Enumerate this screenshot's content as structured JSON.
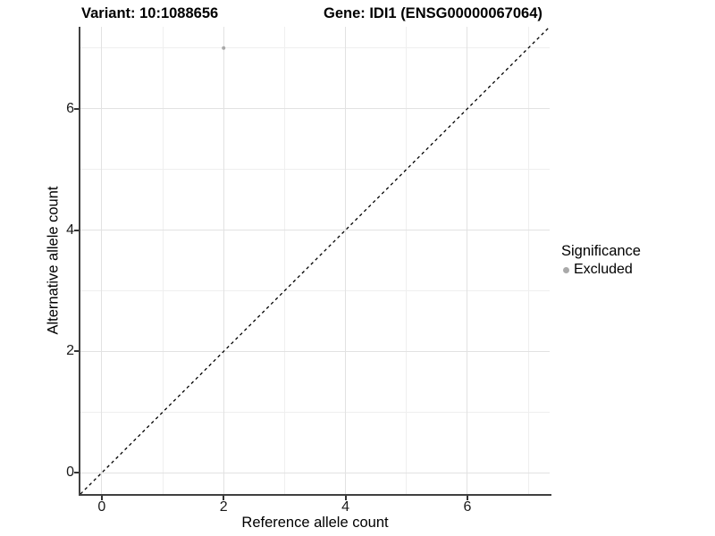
{
  "titles": {
    "variant": "Variant: 10:1088656",
    "gene": "Gene: IDI1 (ENSG00000067064)"
  },
  "legend": {
    "title": "Significance",
    "items": [
      {
        "label": "Excluded",
        "color": "#a9a9a9"
      }
    ]
  },
  "chart_data": {
    "type": "scatter",
    "title": "Variant: 10:1088656   Gene: IDI1 (ENSG00000067064)",
    "xlabel": "Reference allele count",
    "ylabel": "Alternative allele count",
    "xlim": [
      -0.35,
      7.35
    ],
    "ylim": [
      -0.35,
      7.35
    ],
    "x_ticks": {
      "values": [
        0,
        2,
        4,
        6
      ],
      "labels": [
        "0",
        "2",
        "4",
        "6"
      ]
    },
    "y_ticks": {
      "values": [
        0,
        2,
        4,
        6
      ],
      "labels": [
        "0",
        "2",
        "4",
        "6"
      ]
    },
    "grid": true,
    "grid_major": [
      0,
      2,
      4,
      6
    ],
    "grid_minor": [
      1,
      3,
      5,
      7
    ],
    "series": [
      {
        "name": "Excluded",
        "color": "#a9a9a9",
        "points": [
          [
            2,
            7
          ]
        ],
        "point_radius": 2
      }
    ],
    "reference_line": {
      "type": "identity",
      "style": "dashed",
      "color": "#000000",
      "from": [
        -0.35,
        -0.35
      ],
      "to": [
        7.35,
        7.35
      ]
    },
    "legend_position": "right",
    "colors": {
      "axis_line": "#404040",
      "grid_major": "#e2e2e2",
      "grid_minor": "#efefef",
      "tick_mark": "#333333"
    }
  }
}
